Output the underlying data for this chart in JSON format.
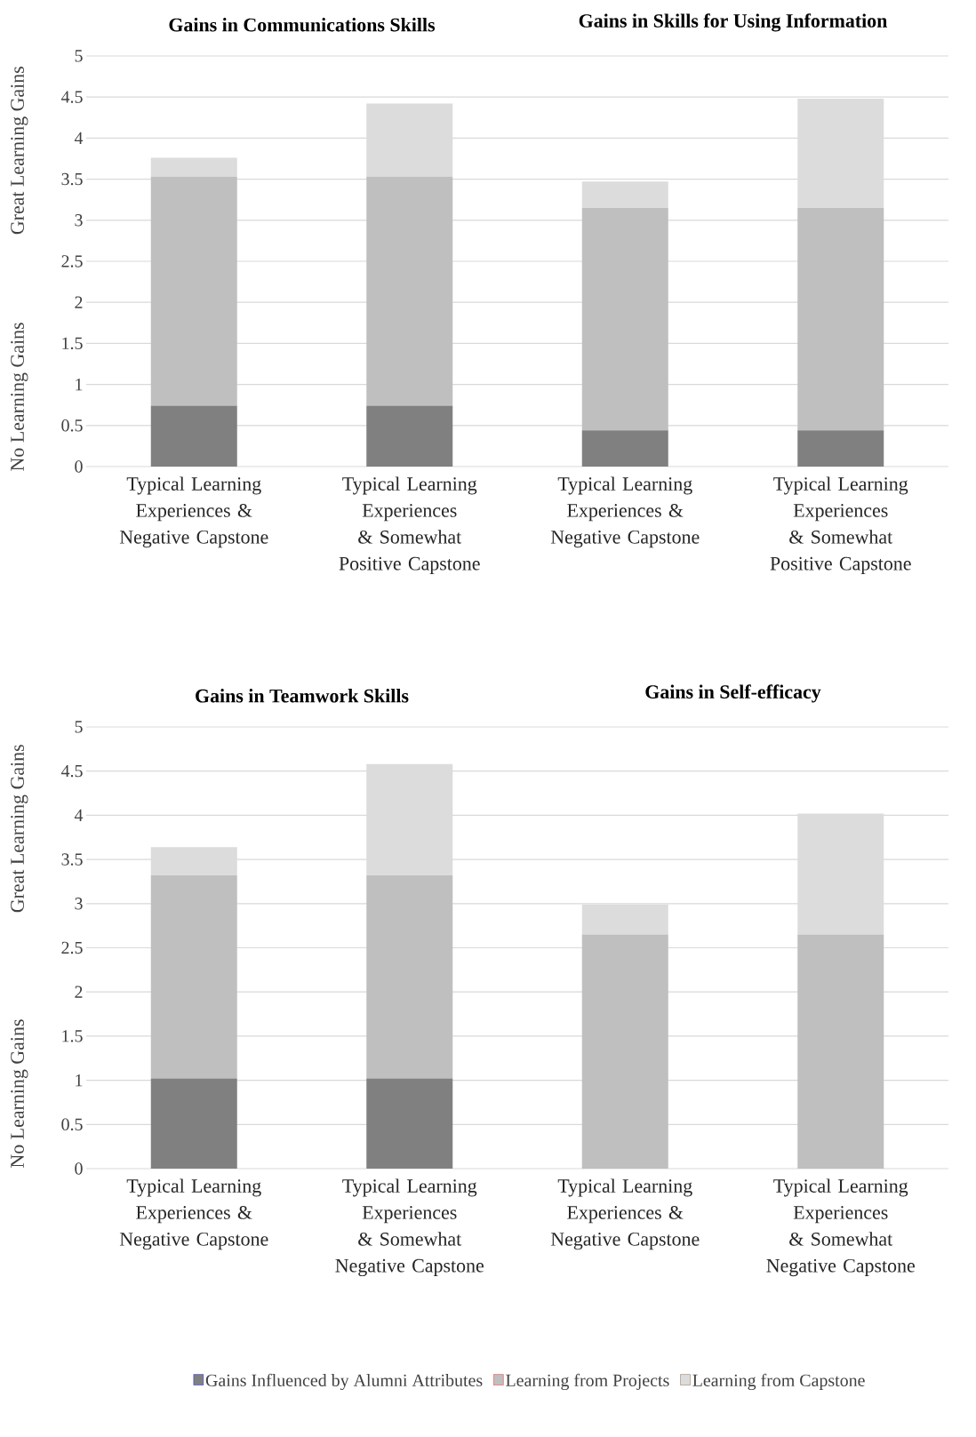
{
  "chart_data": [
    {
      "type": "bar",
      "stacked": true,
      "title": "Gains in Communications Skills",
      "ylabel": "Great Learning Gains",
      "annotations": [
        "No Learning Gains"
      ],
      "categories": [
        "Typical Learning Experiences & Negative Capstone",
        "Typical Learning Experiences & Somewhat Positive Capstone"
      ],
      "ylim": [
        0,
        5
      ],
      "yticks": [
        0,
        0.5,
        1,
        1.5,
        2,
        2.5,
        3,
        3.5,
        4,
        4.5,
        5
      ],
      "grid": "y",
      "series": [
        {
          "color": "#808080",
          "values": [
            0.74,
            0.74
          ]
        },
        {
          "color": "#bfbfbf",
          "values": [
            2.79,
            2.79
          ]
        },
        {
          "color": "#dcdcdc",
          "values": [
            0.23,
            0.89
          ]
        }
      ]
    },
    {
      "type": "bar",
      "stacked": true,
      "title": "Gains in Skills for Using Information",
      "tick_labels": "x",
      "categories": [
        "Typical Learning Experiences & Negative Capstone",
        "Typical Learning Experiences & Somewhat Positive Capstone"
      ],
      "ylim": [
        0,
        5
      ],
      "yticks": [
        0,
        0.5,
        1,
        1.5,
        2,
        2.5,
        3,
        3.5,
        4,
        4.5,
        5
      ],
      "grid": "y",
      "series": [
        {
          "color": "#808080",
          "values": [
            0.44,
            0.44
          ]
        },
        {
          "color": "#bfbfbf",
          "values": [
            2.71,
            2.71
          ]
        },
        {
          "color": "#dcdcdc",
          "values": [
            0.32,
            1.33
          ]
        }
      ]
    },
    {
      "type": "bar",
      "stacked": true,
      "title": "Gains in Teamwork Skills",
      "ylabel": "Great Learning Gains",
      "annotations": [
        "No Learning Gains"
      ],
      "categories": [
        "Typical Learning Experiences & Negative Capstone",
        "Typical Learning Experiences & Somewhat Negative Capstone"
      ],
      "ylim": [
        0,
        5
      ],
      "yticks": [
        0,
        0.5,
        1,
        1.5,
        2,
        2.5,
        3,
        3.5,
        4,
        4.5,
        5
      ],
      "grid": "y",
      "series": [
        {
          "color": "#808080",
          "values": [
            1.02,
            1.02
          ]
        },
        {
          "color": "#bfbfbf",
          "values": [
            2.3,
            2.3
          ]
        },
        {
          "color": "#dcdcdc",
          "values": [
            0.32,
            1.26
          ]
        }
      ]
    },
    {
      "type": "bar",
      "stacked": true,
      "title": "Gains in Self-efficacy",
      "tick_labels": "x",
      "legend": "bottom",
      "categories": [
        "Typical Learning Experiences & Negative Capstone",
        "Typical Learning Experiences & Somewhat Negative Capstone"
      ],
      "ylim": [
        0,
        5
      ],
      "yticks": [
        0,
        0.5,
        1,
        1.5,
        2,
        2.5,
        3,
        3.5,
        4,
        4.5,
        5
      ],
      "grid": "y",
      "series": [
        {
          "name": "Gains Influenced by Alumni Attributes",
          "color": "#808080",
          "values": [
            0,
            0
          ]
        },
        {
          "name": "Learning from Projects",
          "color": "#bfbfbf",
          "values": [
            2.65,
            2.65
          ]
        },
        {
          "name": "Learning from Capstone",
          "color": "#dcdcdc",
          "values": [
            0.34,
            1.37
          ]
        }
      ]
    }
  ]
}
